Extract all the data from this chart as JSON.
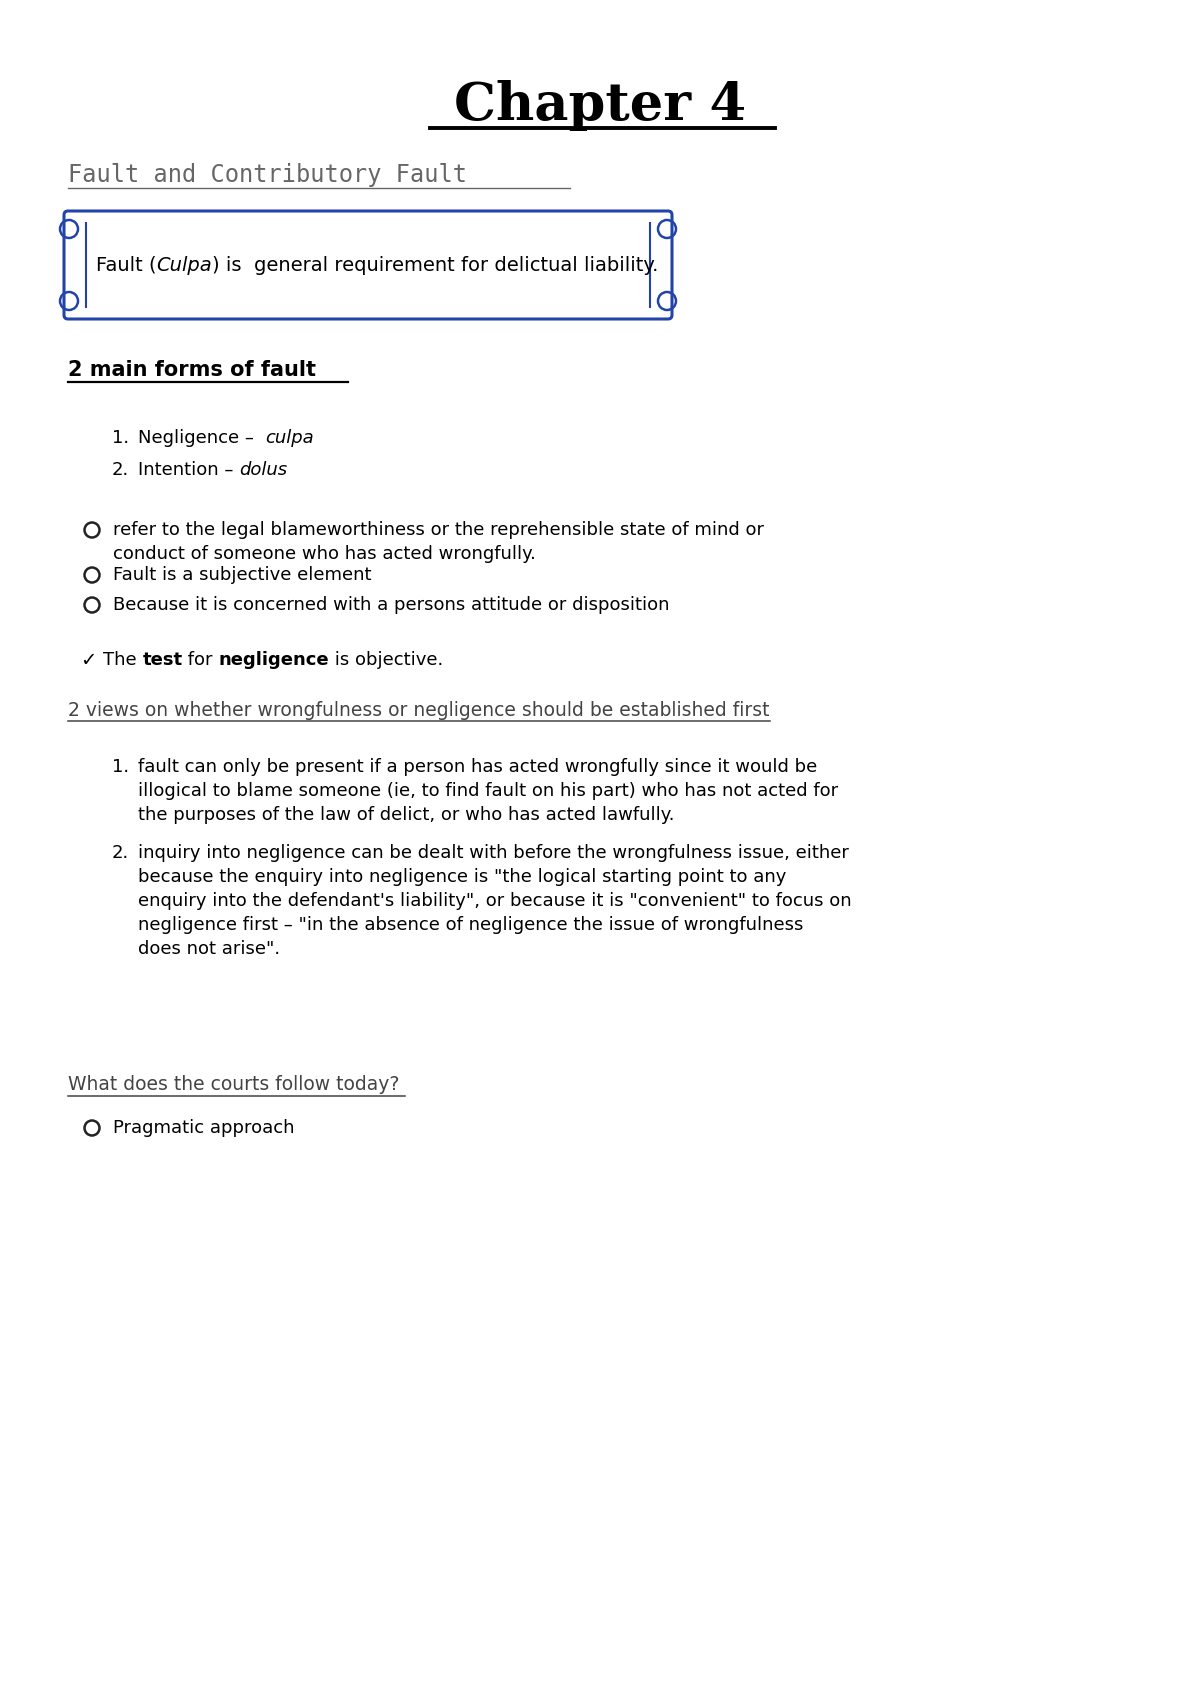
{
  "title": "Chapter 4",
  "subtitle": "Fault and Contributory Fault ",
  "box_text_prefix": "Fault (",
  "box_text_italic": "Culpa",
  "box_text_suffix": ") is  general requirement for delictual liability.",
  "section1_heading": "2 main forms of fault",
  "list1_prefix": [
    "Negligence –  ",
    "Intention – "
  ],
  "list1_italic": [
    "culpa",
    "dolus"
  ],
  "bullets1": [
    [
      "refer to the legal blameworthiness or the reprehensible state of mind or",
      "conduct of someone who has acted wrongfully."
    ],
    [
      "Fault is a subjective element"
    ],
    [
      "Because it is concerned with a persons attitude or disposition"
    ]
  ],
  "check_parts": [
    [
      "The ",
      false
    ],
    [
      "test",
      true
    ],
    [
      " for ",
      false
    ],
    [
      "negligence",
      true
    ],
    [
      " is objective.",
      false
    ]
  ],
  "section2_heading": "2 views on whether wrongfulness or negligence should be established first",
  "list2": [
    [
      "fault can only be present if a person has acted wrongfully since it would be",
      "illogical to blame someone (ie, to find fault on his part) who has not acted for",
      "the purposes of the law of delict, or who has acted lawfully."
    ],
    [
      "inquiry into negligence can be dealt with before the wrongfulness issue, either",
      "because the enquiry into negligence is \"the logical starting point to any",
      "enquiry into the defendant's liability\", or because it is \"convenient\" to focus on",
      "negligence first – \"in the absence of negligence the issue of wrongfulness",
      "does not arise\"."
    ]
  ],
  "section3_heading": "What does the courts follow today? ",
  "list3": [
    "Pragmatic approach"
  ],
  "bg_color": "#ffffff",
  "text_color": "#000000",
  "subtitle_color": "#666666",
  "box_border_color": "#2244aa",
  "box_fill_color": "#ffffff",
  "section2_color": "#444444"
}
